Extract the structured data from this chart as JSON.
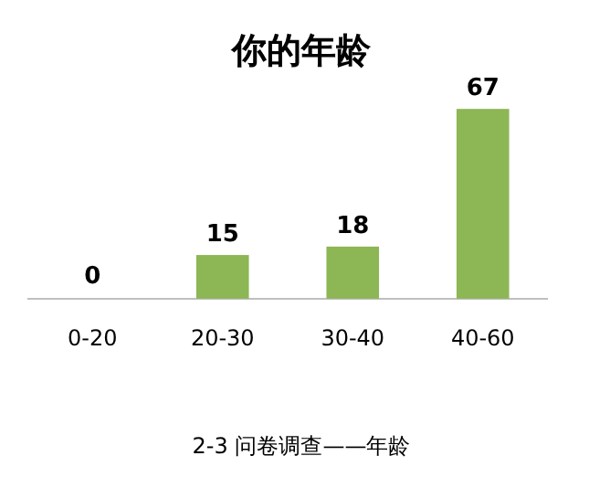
{
  "chart_data": {
    "type": "bar",
    "title": "你的年龄",
    "categories": [
      "0-20",
      "20-30",
      "30-40",
      "40-60"
    ],
    "values": [
      0,
      15,
      18,
      67
    ],
    "color": "#8db654",
    "data_labels": true,
    "annotations": [
      "2-3 问卷调查——年龄"
    ]
  }
}
